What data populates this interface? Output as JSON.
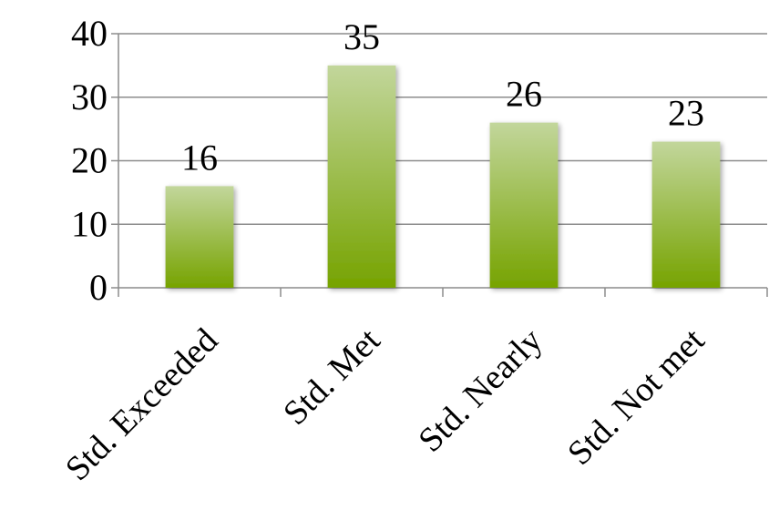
{
  "chart_data": {
    "type": "bar",
    "categories": [
      "Std. Exceeded",
      "Std. Met",
      "Std. Nearly",
      "Std. Not met"
    ],
    "values": [
      16,
      35,
      26,
      23
    ],
    "title": "",
    "xlabel": "",
    "ylabel": "",
    "ylim": [
      0,
      40
    ],
    "yticks": [
      0,
      10,
      20,
      30,
      40
    ],
    "grid": true,
    "legend": "none",
    "data_labels": true,
    "colors": {
      "bar_top": "#c2d69b",
      "bar_bottom": "#76a300",
      "grid": "#8c8c8c",
      "axis": "#8c8c8c",
      "text": "#000000"
    }
  }
}
